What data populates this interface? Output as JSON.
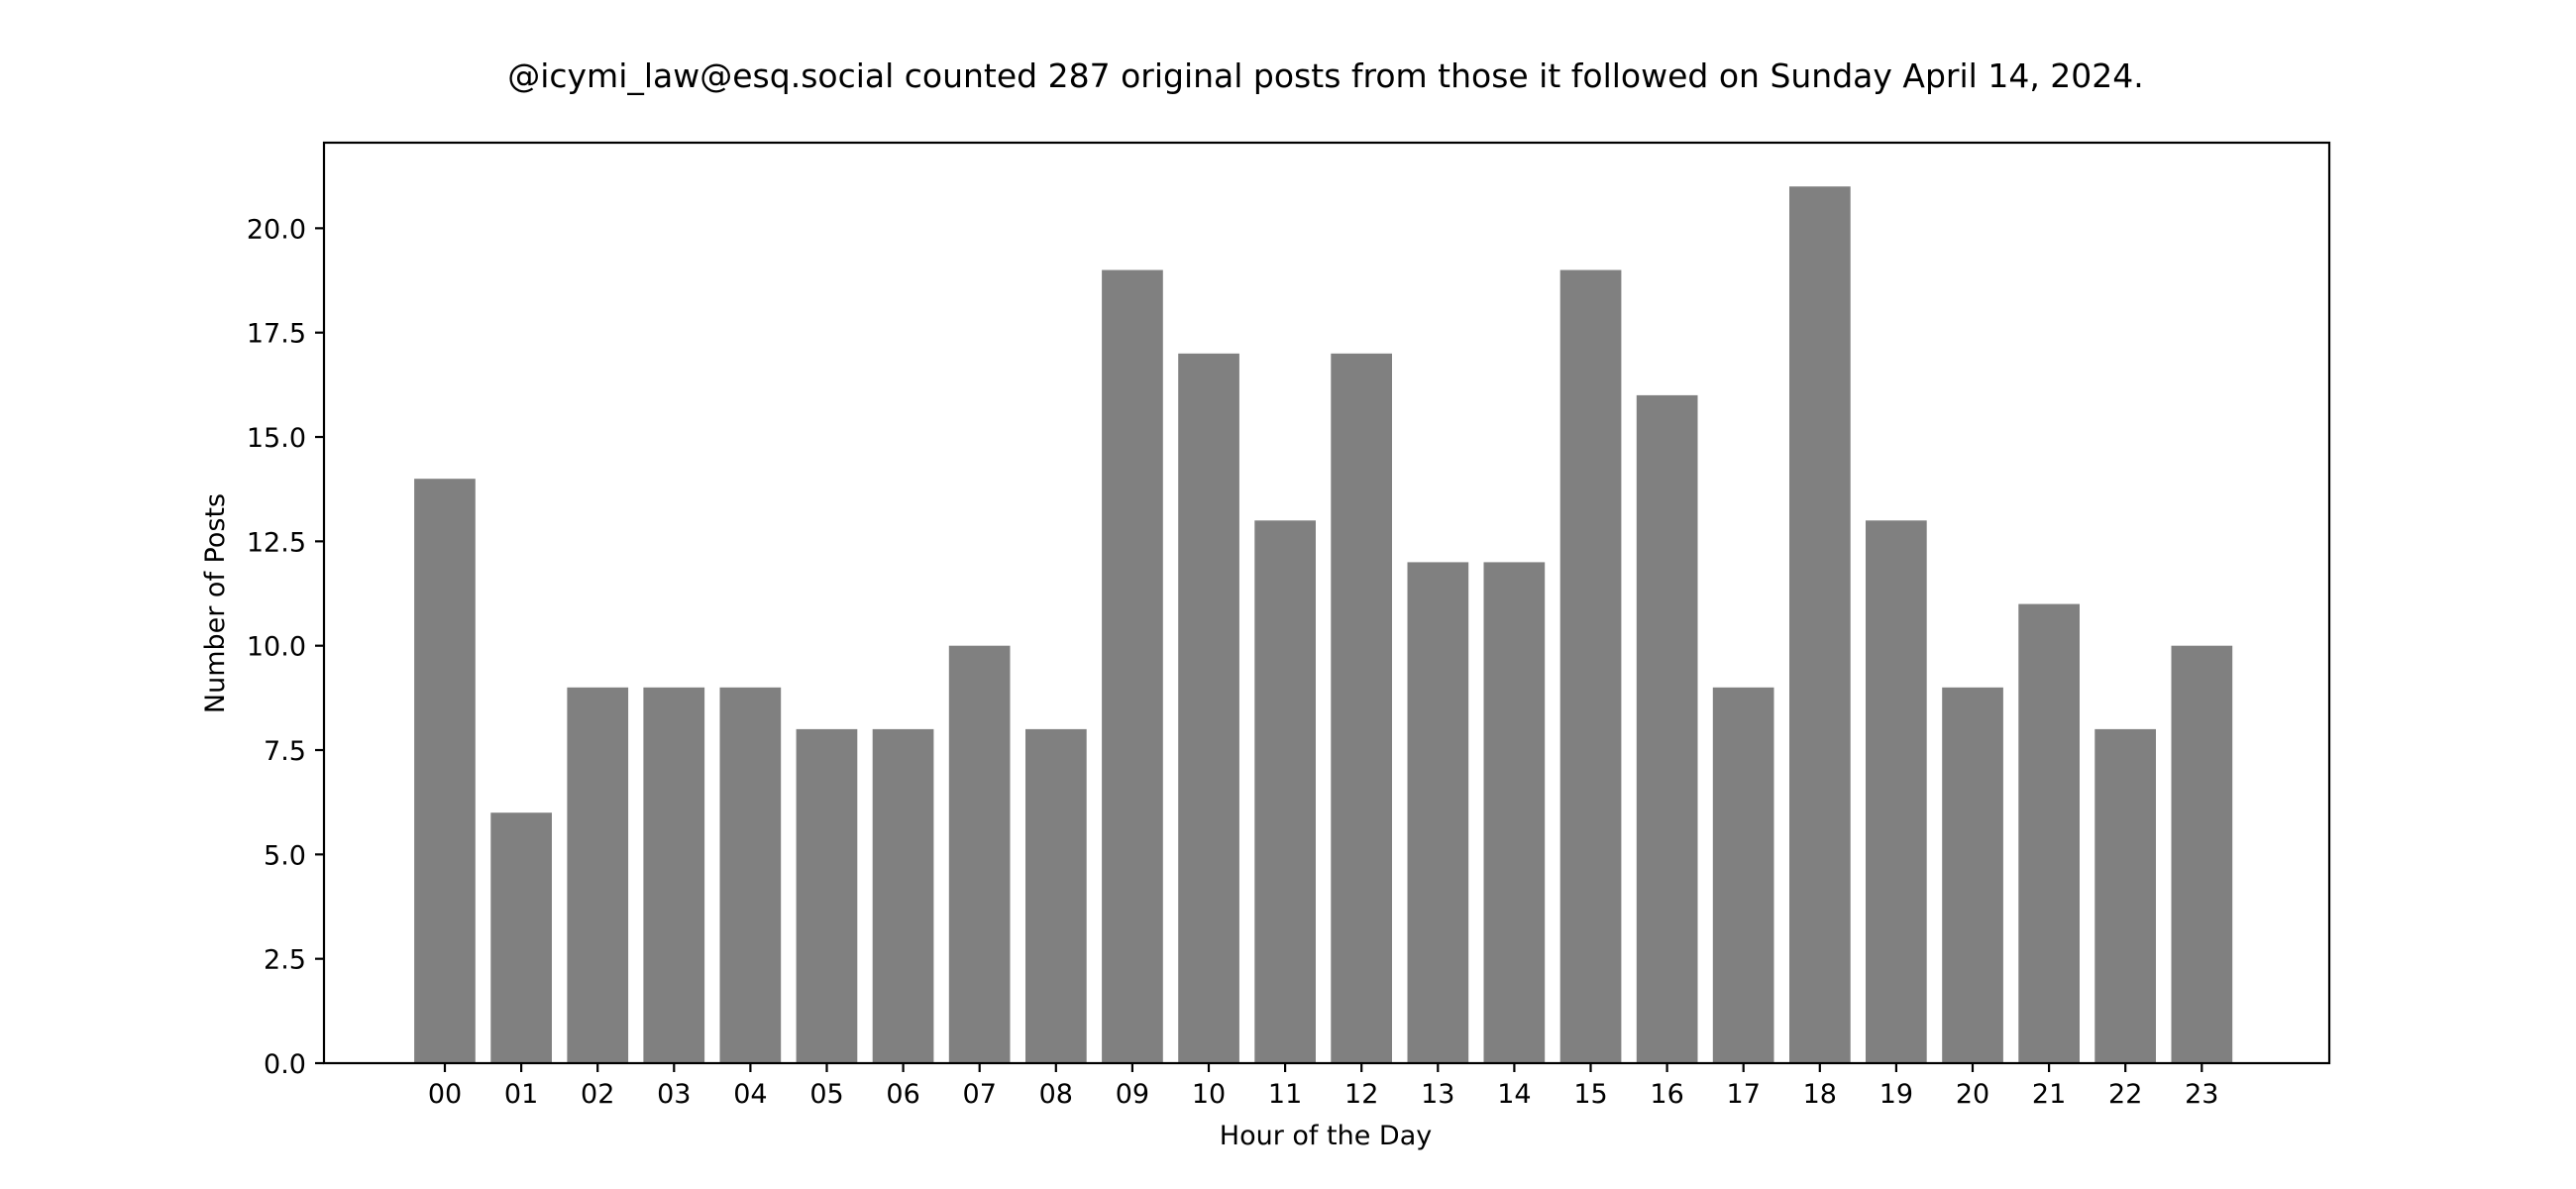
{
  "chart_data": {
    "type": "bar",
    "title": "@icymi_law@esq.social counted 287 original posts from those it followed on Sunday April 14, 2024.",
    "xlabel": "Hour of the Day",
    "ylabel": "Number of Posts",
    "categories": [
      "00",
      "01",
      "02",
      "03",
      "04",
      "05",
      "06",
      "07",
      "08",
      "09",
      "10",
      "11",
      "12",
      "13",
      "14",
      "15",
      "16",
      "17",
      "18",
      "19",
      "20",
      "21",
      "22",
      "23"
    ],
    "values": [
      14,
      6,
      9,
      9,
      9,
      8,
      8,
      10,
      8,
      19,
      17,
      13,
      17,
      12,
      12,
      19,
      16,
      9,
      21,
      13,
      9,
      11,
      8,
      10
    ],
    "ylim": [
      0,
      22.05
    ],
    "yticks": [
      "0.0",
      "2.5",
      "5.0",
      "7.5",
      "10.0",
      "12.5",
      "15.0",
      "17.5",
      "20.0"
    ],
    "grid": false,
    "bar_color": "#808080"
  }
}
